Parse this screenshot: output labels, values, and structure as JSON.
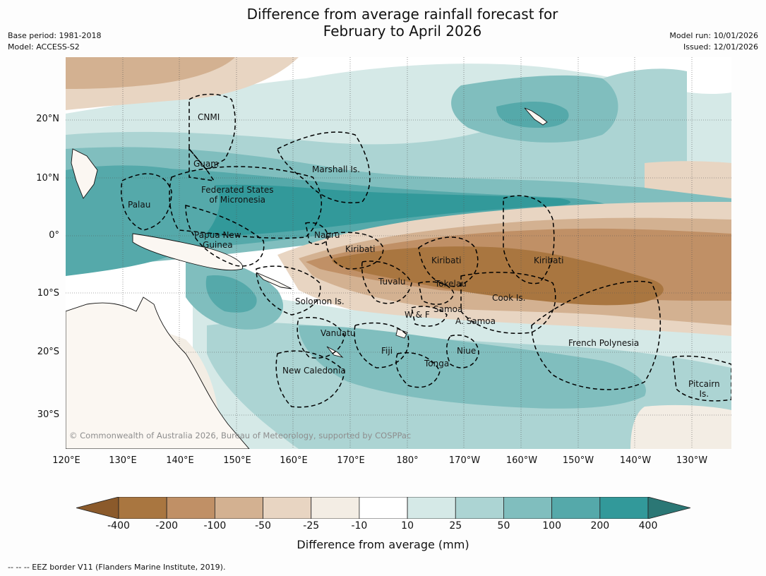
{
  "title_line1": "Difference from average rainfall forecast for",
  "title_line2": "February to April 2026",
  "meta_left": {
    "base_period": "Base period: 1981-2018",
    "model": "Model: ACCESS-S2"
  },
  "meta_right": {
    "model_run": "Model run: 10/01/2026",
    "issued": "Issued: 12/01/2026"
  },
  "lat_labels": [
    "20°N",
    "10°N",
    "0°",
    "10°S",
    "20°S",
    "30°S"
  ],
  "lon_labels": [
    "120°E",
    "130°E",
    "140°E",
    "150°E",
    "160°E",
    "170°E",
    "180°",
    "170°W",
    "160°W",
    "150°W",
    "140°W",
    "130°W"
  ],
  "places": {
    "cnmi": "CNMI",
    "guam": "Guam",
    "marshall": "Marshall Is.",
    "fsm_1": "Federated States",
    "fsm_2": "of Micronesia",
    "palau": "Palau",
    "png_1": "Papua New",
    "png_2": "Guinea",
    "nauru": "Nauru",
    "kiribati_w": "Kiribati",
    "kiribati_c": "Kiribati",
    "kiribati_e": "Kiribati",
    "tuvalu": "Tuvalu",
    "tokelau": "Tokelau",
    "cook": "Cook Is.",
    "solomon": "Solomon Is.",
    "wf": "W & F",
    "samoa": "Samoa",
    "asamoa": "A. Samoa",
    "vanuatu": "Vanuatu",
    "fiji": "Fiji",
    "niue": "Niue",
    "tonga": "Tonga",
    "newcal": "New Caledonia",
    "frpoly": "French Polynesia",
    "pitcairn_1": "Pitcairn",
    "pitcairn_2": "Is."
  },
  "copyright": "© Commonwealth of Australia 2026, Bureau of Meteorology, supported by COSPPac",
  "colorbar": {
    "ticks": [
      "-400",
      "-200",
      "-100",
      "-50",
      "-25",
      "-10",
      "10",
      "25",
      "50",
      "100",
      "200",
      "400"
    ],
    "colors": [
      "#8b5a2b",
      "#a97640",
      "#c09066",
      "#d3b191",
      "#e8d5c2",
      "#f3ede4",
      "#ffffff",
      "#d5e9e7",
      "#acd4d3",
      "#80bebe",
      "#55a9aa",
      "#32999a",
      "#2b7775"
    ],
    "title": "Difference from average (mm)"
  },
  "footnote": "--  --  -- EEZ border V11 (Flanders Marine Institute, 2019)."
}
